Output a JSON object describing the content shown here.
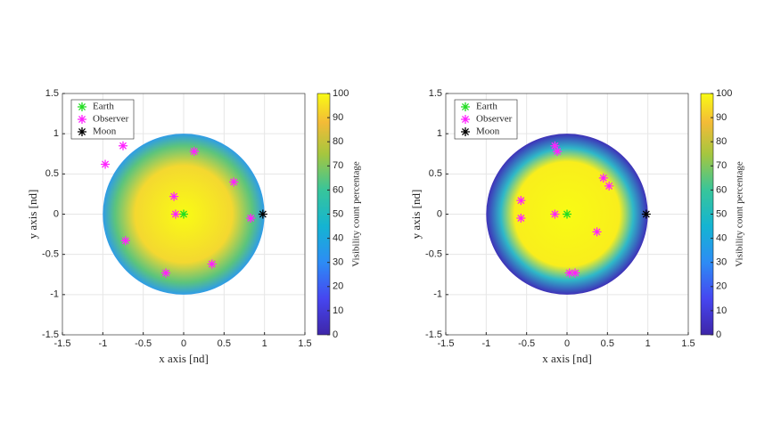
{
  "chart_data": [
    {
      "type": "scatter",
      "xlabel": "x axis [nd]",
      "ylabel": "y axis [nd]",
      "xlim": [
        -1.5,
        1.5
      ],
      "ylim": [
        -1.5,
        1.5
      ],
      "xticks": [
        -1.5,
        -1,
        -0.5,
        0,
        0.5,
        1,
        1.5
      ],
      "yticks": [
        -1.5,
        -1,
        -0.5,
        0,
        0.5,
        1,
        1.5
      ],
      "grid": true,
      "legend": "top-left",
      "series": [
        {
          "name": "Earth",
          "color": "#22dd22",
          "x": [
            0
          ],
          "y": [
            0
          ]
        },
        {
          "name": "Observer",
          "color": "#ff22ff",
          "x": [
            -0.75,
            -0.97,
            0.13,
            -0.12,
            -0.1,
            0.62,
            0.83,
            -0.72,
            0.35,
            -0.22
          ],
          "y": [
            0.85,
            0.62,
            0.78,
            0.22,
            0,
            0.4,
            -0.05,
            -0.33,
            -0.62,
            -0.73
          ]
        },
        {
          "name": "Moon",
          "color": "#000000",
          "x": [
            0.98
          ],
          "y": [
            0
          ]
        }
      ],
      "colorbar": {
        "label": "Visibility count percentage",
        "colormap": "parula",
        "lim": [
          0,
          100
        ],
        "ticks": [
          0,
          10,
          20,
          30,
          40,
          50,
          60,
          70,
          80,
          90,
          100
        ]
      }
    },
    {
      "type": "scatter",
      "xlabel": "x axis [nd]",
      "ylabel": "y axis [nd]",
      "xlim": [
        -1.5,
        1.5
      ],
      "ylim": [
        -1.5,
        1.5
      ],
      "xticks": [
        -1.5,
        -1,
        -0.5,
        0,
        0.5,
        1,
        1.5
      ],
      "yticks": [
        -1.5,
        -1,
        -0.5,
        0,
        0.5,
        1,
        1.5
      ],
      "grid": true,
      "legend": "top-left",
      "series": [
        {
          "name": "Earth",
          "color": "#22dd22",
          "x": [
            0
          ],
          "y": [
            0
          ]
        },
        {
          "name": "Observer",
          "color": "#ff22ff",
          "x": [
            -0.15,
            -0.12,
            0.45,
            0.52,
            -0.57,
            -0.57,
            -0.15,
            0.37,
            0.03,
            0.1
          ],
          "y": [
            0.85,
            0.78,
            0.45,
            0.35,
            0.17,
            -0.05,
            0,
            -0.22,
            -0.73,
            -0.73
          ]
        },
        {
          "name": "Moon",
          "color": "#000000",
          "x": [
            0.98
          ],
          "y": [
            0
          ]
        }
      ],
      "colorbar": {
        "label": "Visibility count percentage",
        "colormap": "parula",
        "lim": [
          0,
          100
        ],
        "ticks": [
          0,
          10,
          20,
          30,
          40,
          50,
          60,
          70,
          80,
          90,
          100
        ]
      }
    }
  ]
}
